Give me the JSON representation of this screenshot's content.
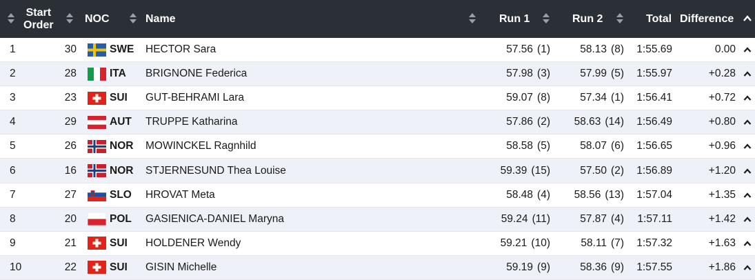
{
  "header": {
    "start_order_line1": "Start",
    "start_order_line2": "Order",
    "noc": "NOC",
    "name": "Name",
    "run1": "Run 1",
    "run2": "Run 2",
    "total": "Total",
    "difference": "Difference"
  },
  "colors": {
    "header_bg": "#2b2f36",
    "row_alt_bg": "#eef2f8"
  },
  "rows": [
    {
      "rank": "1",
      "start": "30",
      "flag": "swe-flag-icon",
      "noc": "SWE",
      "name": "HECTOR Sara",
      "run1": "57.56",
      "run1_rank": "(1)",
      "run2": "58.13",
      "run2_rank": "(8)",
      "total": "1:55.69",
      "diff": "0.00"
    },
    {
      "rank": "2",
      "start": "28",
      "flag": "ita-flag-icon",
      "noc": "ITA",
      "name": "BRIGNONE Federica",
      "run1": "57.98",
      "run1_rank": "(3)",
      "run2": "57.99",
      "run2_rank": "(5)",
      "total": "1:55.97",
      "diff": "+0.28"
    },
    {
      "rank": "3",
      "start": "23",
      "flag": "sui-flag-icon",
      "noc": "SUI",
      "name": "GUT-BEHRAMI Lara",
      "run1": "59.07",
      "run1_rank": "(8)",
      "run2": "57.34",
      "run2_rank": "(1)",
      "total": "1:56.41",
      "diff": "+0.72"
    },
    {
      "rank": "4",
      "start": "29",
      "flag": "aut-flag-icon",
      "noc": "AUT",
      "name": "TRUPPE Katharina",
      "run1": "57.86",
      "run1_rank": "(2)",
      "run2": "58.63",
      "run2_rank": "(14)",
      "total": "1:56.49",
      "diff": "+0.80"
    },
    {
      "rank": "5",
      "start": "26",
      "flag": "nor-flag-icon",
      "noc": "NOR",
      "name": "MOWINCKEL Ragnhild",
      "run1": "58.58",
      "run1_rank": "(5)",
      "run2": "58.07",
      "run2_rank": "(6)",
      "total": "1:56.65",
      "diff": "+0.96"
    },
    {
      "rank": "6",
      "start": "16",
      "flag": "nor-flag-icon",
      "noc": "NOR",
      "name": "STJERNESUND Thea Louise",
      "run1": "59.39",
      "run1_rank": "(15)",
      "run2": "57.50",
      "run2_rank": "(2)",
      "total": "1:56.89",
      "diff": "+1.20"
    },
    {
      "rank": "7",
      "start": "27",
      "flag": "slo-flag-icon",
      "noc": "SLO",
      "name": "HROVAT Meta",
      "run1": "58.48",
      "run1_rank": "(4)",
      "run2": "58.56",
      "run2_rank": "(13)",
      "total": "1:57.04",
      "diff": "+1.35"
    },
    {
      "rank": "8",
      "start": "20",
      "flag": "pol-flag-icon",
      "noc": "POL",
      "name": "GASIENICA-DANIEL Maryna",
      "run1": "59.24",
      "run1_rank": "(11)",
      "run2": "57.87",
      "run2_rank": "(4)",
      "total": "1:57.11",
      "diff": "+1.42"
    },
    {
      "rank": "9",
      "start": "21",
      "flag": "sui-flag-icon",
      "noc": "SUI",
      "name": "HOLDENER Wendy",
      "run1": "59.21",
      "run1_rank": "(10)",
      "run2": "58.11",
      "run2_rank": "(7)",
      "total": "1:57.32",
      "diff": "+1.63"
    },
    {
      "rank": "10",
      "start": "22",
      "flag": "sui-flag-icon",
      "noc": "SUI",
      "name": "GISIN Michelle",
      "run1": "59.19",
      "run1_rank": "(9)",
      "run2": "58.36",
      "run2_rank": "(9)",
      "total": "1:57.55",
      "diff": "+1.86"
    }
  ]
}
